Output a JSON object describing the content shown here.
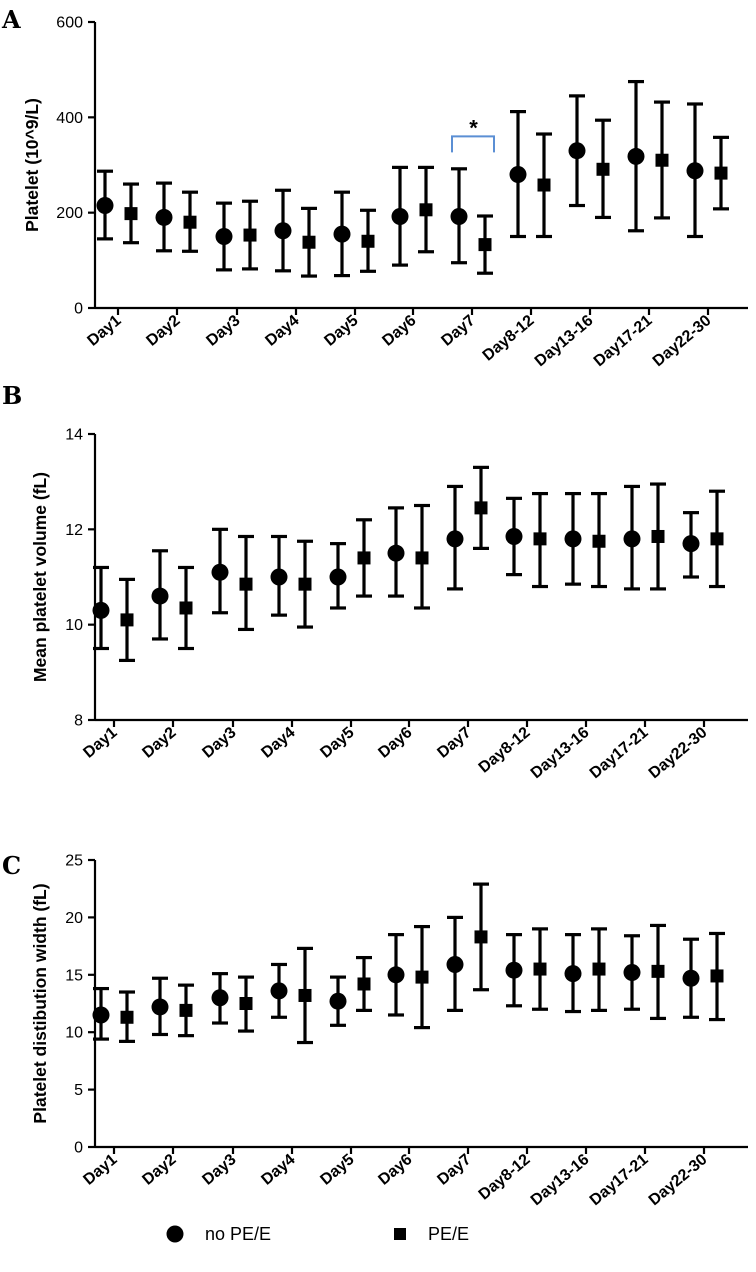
{
  "chart_data": [
    {
      "panel": "A",
      "type": "scatter",
      "ylabel": "Platelet (10^9/L)",
      "xlabel": "",
      "ylim": [
        0,
        600
      ],
      "yticks": [
        0,
        200,
        400,
        600
      ],
      "categories": [
        "Day1",
        "Day2",
        "Day3",
        "Day4",
        "Day5",
        "Day6",
        "Day7",
        "Day8-12",
        "Day13-16",
        "Day17-21",
        "Day22-30"
      ],
      "series": [
        {
          "name": "no PE/E",
          "marker": "circle",
          "values": [
            215,
            190,
            150,
            162,
            155,
            192,
            192,
            280,
            330,
            318,
            288
          ],
          "lower": [
            145,
            120,
            80,
            78,
            68,
            90,
            95,
            150,
            215,
            162,
            150
          ],
          "upper": [
            287,
            262,
            220,
            247,
            243,
            295,
            292,
            412,
            445,
            475,
            428
          ]
        },
        {
          "name": "PE/E",
          "marker": "square",
          "values": [
            198,
            180,
            153,
            138,
            140,
            206,
            133,
            258,
            291,
            310,
            283
          ],
          "lower": [
            137,
            119,
            82,
            67,
            77,
            118,
            73,
            150,
            190,
            189,
            208
          ],
          "upper": [
            260,
            243,
            224,
            209,
            205,
            295,
            193,
            365,
            394,
            432,
            358
          ]
        }
      ],
      "annotation": {
        "text": "*",
        "category": "Day7",
        "y": 360
      }
    },
    {
      "panel": "B",
      "type": "scatter",
      "ylabel": "Mean platelet volume (fL)",
      "xlabel": "",
      "ylim": [
        8,
        14
      ],
      "yticks": [
        8,
        10,
        12,
        14
      ],
      "categories": [
        "Day1",
        "Day2",
        "Day3",
        "Day4",
        "Day5",
        "Day6",
        "Day7",
        "Day8-12",
        "Day13-16",
        "Day17-21",
        "Day22-30"
      ],
      "series": [
        {
          "name": "no PE/E",
          "marker": "circle",
          "values": [
            10.3,
            10.6,
            11.1,
            11.0,
            11.0,
            11.5,
            11.8,
            11.85,
            11.8,
            11.8,
            11.7
          ],
          "lower": [
            9.5,
            9.7,
            10.25,
            10.2,
            10.35,
            10.6,
            10.75,
            11.05,
            10.85,
            10.75,
            11.0
          ],
          "upper": [
            11.2,
            11.55,
            12.0,
            11.85,
            11.7,
            12.45,
            12.9,
            12.65,
            12.75,
            12.9,
            12.35
          ]
        },
        {
          "name": "PE/E",
          "marker": "square",
          "values": [
            10.1,
            10.35,
            10.85,
            10.85,
            11.4,
            11.4,
            12.45,
            11.8,
            11.75,
            11.85,
            11.8
          ],
          "lower": [
            9.25,
            9.5,
            9.9,
            9.95,
            10.6,
            10.35,
            11.6,
            10.8,
            10.8,
            10.75,
            10.8
          ],
          "upper": [
            10.95,
            11.2,
            11.85,
            11.75,
            12.2,
            12.5,
            13.3,
            12.75,
            12.75,
            12.95,
            12.8
          ]
        }
      ]
    },
    {
      "panel": "C",
      "type": "scatter",
      "ylabel": "Platelet distibution width (fL)",
      "xlabel": "",
      "ylim": [
        0,
        25
      ],
      "yticks": [
        0,
        5,
        10,
        15,
        20,
        25
      ],
      "categories": [
        "Day1",
        "Day2",
        "Day3",
        "Day4",
        "Day5",
        "Day6",
        "Day7",
        "Day8-12",
        "Day13-16",
        "Day17-21",
        "Day22-30"
      ],
      "series": [
        {
          "name": "no PE/E",
          "marker": "circle",
          "values": [
            11.5,
            12.2,
            13.0,
            13.6,
            12.7,
            15.0,
            15.9,
            15.4,
            15.1,
            15.2,
            14.7
          ],
          "lower": [
            9.4,
            9.8,
            10.8,
            11.3,
            10.6,
            11.5,
            11.9,
            12.3,
            11.8,
            12.0,
            11.3
          ],
          "upper": [
            13.8,
            14.7,
            15.1,
            15.9,
            14.8,
            18.5,
            20.0,
            18.5,
            18.5,
            18.4,
            18.1
          ]
        },
        {
          "name": "PE/E",
          "marker": "square",
          "values": [
            11.3,
            11.9,
            12.5,
            13.2,
            14.2,
            14.8,
            18.3,
            15.5,
            15.5,
            15.3,
            14.9
          ],
          "lower": [
            9.2,
            9.7,
            10.1,
            9.1,
            11.9,
            10.4,
            13.7,
            12.0,
            11.9,
            11.2,
            11.1
          ],
          "upper": [
            13.5,
            14.1,
            14.8,
            17.3,
            16.5,
            19.2,
            22.9,
            19.0,
            19.0,
            19.3,
            18.6
          ]
        }
      ]
    }
  ],
  "legend": [
    {
      "label": "no PE/E",
      "marker": "circle"
    },
    {
      "label": "PE/E",
      "marker": "square"
    }
  ],
  "colors": {
    "ink": "#000000",
    "bracket": "#5b8fd4"
  }
}
